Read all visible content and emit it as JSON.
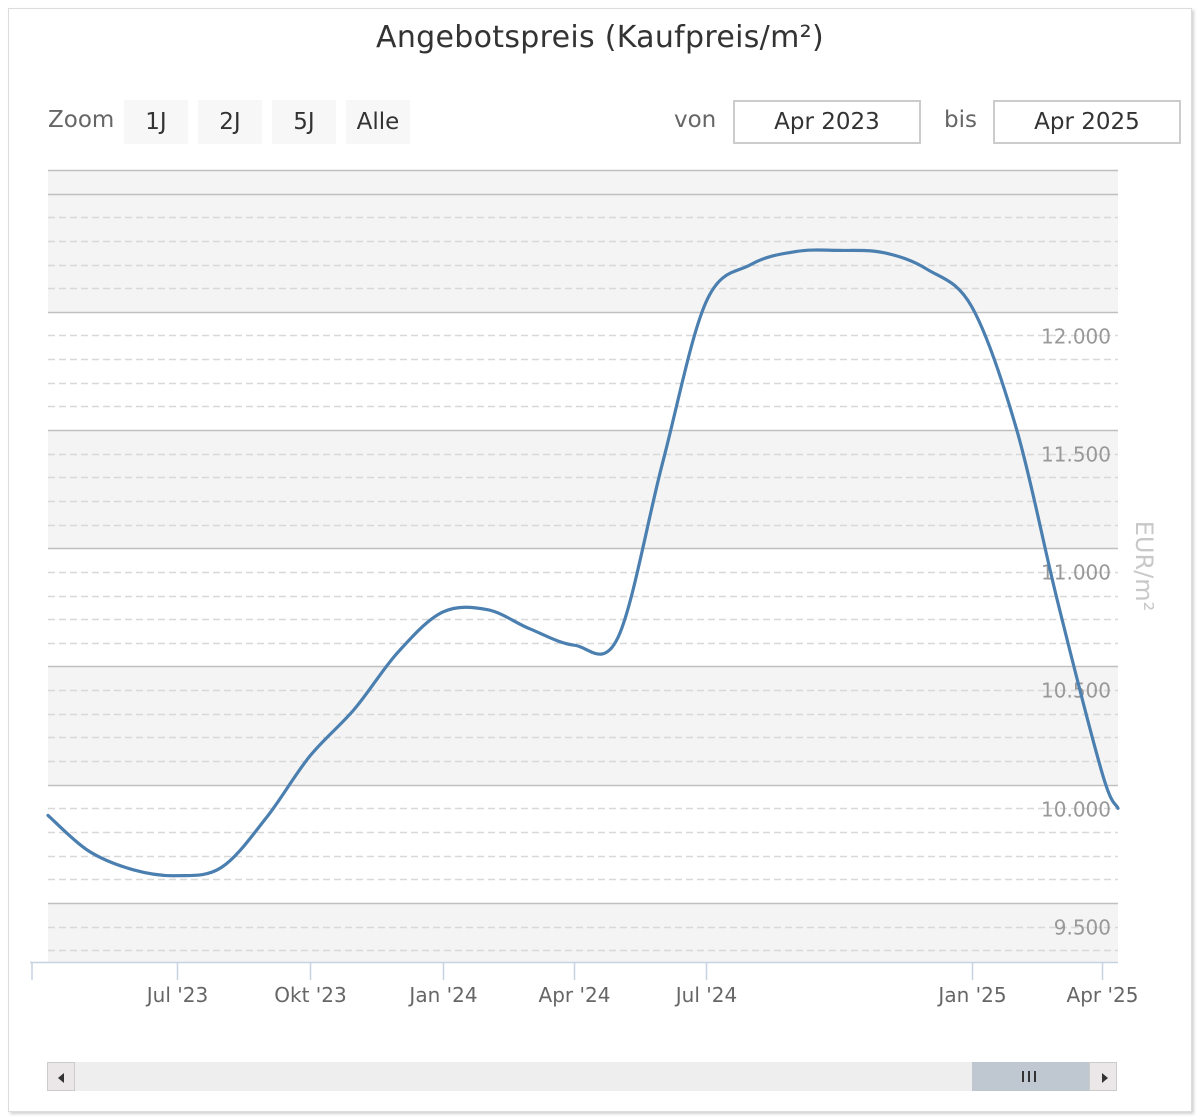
{
  "chart_data": {
    "type": "line",
    "title": "Angebotspreis (Kaufpreis/m²)",
    "ylabel": "EUR/m²",
    "xlabel": "",
    "x_ticks": [
      {
        "label": "Jul '23",
        "date": "2023-07-01"
      },
      {
        "label": "Okt '23",
        "date": "2023-10-01"
      },
      {
        "label": "Jan '24",
        "date": "2024-01-01"
      },
      {
        "label": "Apr '24",
        "date": "2024-04-01"
      },
      {
        "label": "Jul '24",
        "date": "2024-07-01"
      },
      {
        "label": "Jan '25",
        "date": "2025-01-01"
      },
      {
        "label": "Apr '25",
        "date": "2025-04-01"
      }
    ],
    "y_ticks": [
      {
        "value": 9500,
        "label": "9.500"
      },
      {
        "value": 10000,
        "label": "10.000"
      },
      {
        "value": 10500,
        "label": "10.500"
      },
      {
        "value": 11000,
        "label": "11.000"
      },
      {
        "value": 11500,
        "label": "11.500"
      },
      {
        "value": 12000,
        "label": "12.000"
      }
    ],
    "ylim": [
      9250,
      12600
    ],
    "xlim": [
      "2023-04-03",
      "2025-04-12"
    ],
    "grid": true,
    "color": "#4a7fb0",
    "series": [
      {
        "points": [
          {
            "x": "2023-04-03",
            "y": 9870
          },
          {
            "x": "2023-05-01",
            "y": 9720
          },
          {
            "x": "2023-06-01",
            "y": 9640
          },
          {
            "x": "2023-07-01",
            "y": 9615
          },
          {
            "x": "2023-08-01",
            "y": 9650
          },
          {
            "x": "2023-09-01",
            "y": 9860
          },
          {
            "x": "2023-10-01",
            "y": 10120
          },
          {
            "x": "2023-11-01",
            "y": 10320
          },
          {
            "x": "2023-12-01",
            "y": 10560
          },
          {
            "x": "2024-01-01",
            "y": 10730
          },
          {
            "x": "2024-02-01",
            "y": 10740
          },
          {
            "x": "2024-03-01",
            "y": 10660
          },
          {
            "x": "2024-04-01",
            "y": 10590
          },
          {
            "x": "2024-05-01",
            "y": 10620
          },
          {
            "x": "2024-06-01",
            "y": 11360
          },
          {
            "x": "2024-07-01",
            "y": 12040
          },
          {
            "x": "2024-08-01",
            "y": 12200
          },
          {
            "x": "2024-09-01",
            "y": 12255
          },
          {
            "x": "2024-10-01",
            "y": 12260
          },
          {
            "x": "2024-11-01",
            "y": 12250
          },
          {
            "x": "2024-12-01",
            "y": 12180
          },
          {
            "x": "2025-01-01",
            "y": 12020
          },
          {
            "x": "2025-02-01",
            "y": 11500
          },
          {
            "x": "2025-03-01",
            "y": 10780
          },
          {
            "x": "2025-04-01",
            "y": 10050
          },
          {
            "x": "2025-04-12",
            "y": 9900
          }
        ]
      }
    ]
  },
  "controls": {
    "zoom_label": "Zoom",
    "zoom_buttons": [
      "1J",
      "2J",
      "5J",
      "Alle"
    ],
    "from_label": "von",
    "from_value": "Apr 2023",
    "to_label": "bis",
    "to_value": "Apr 2025"
  },
  "navigator": {
    "range_fraction": [
      0.86,
      0.97
    ]
  }
}
